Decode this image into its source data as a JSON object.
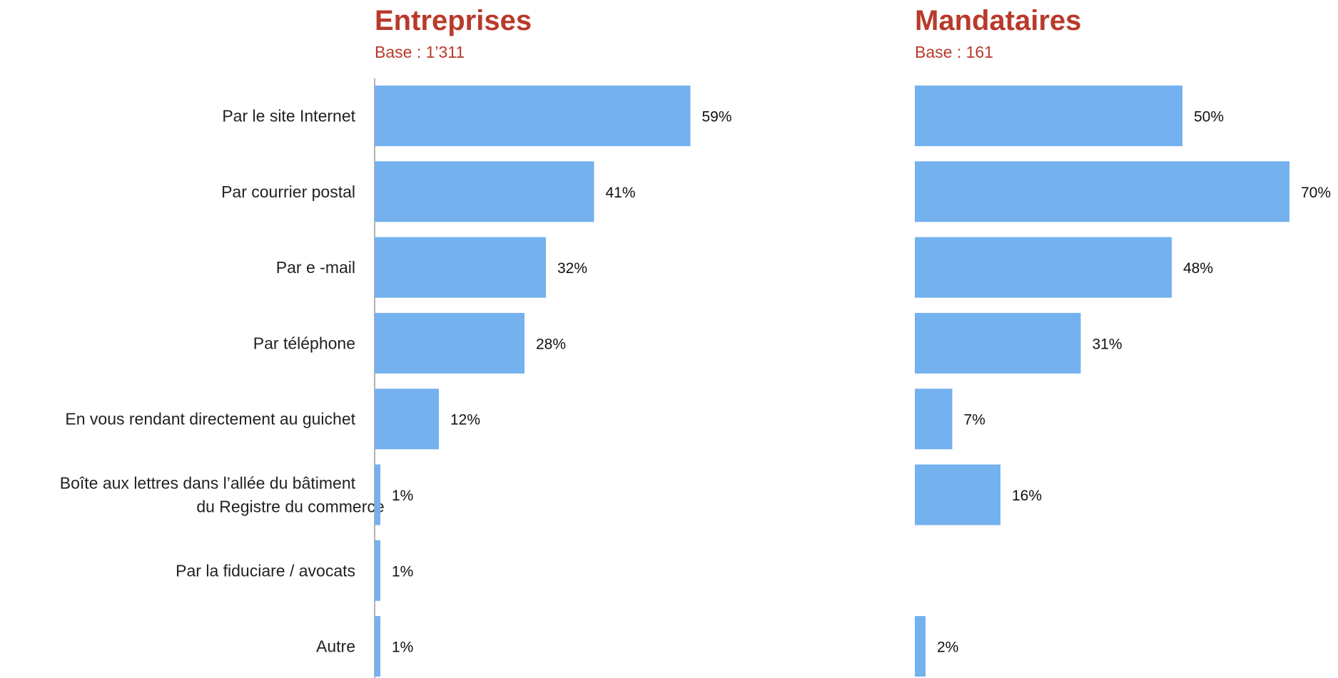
{
  "colors": {
    "bar": "#74b1ef",
    "title": "#b83a2b",
    "axis": "#9a9a9a"
  },
  "chart_data": {
    "type": "bar",
    "orientation": "horizontal",
    "categories": [
      [
        "Par le site Internet"
      ],
      [
        "Par courrier postal"
      ],
      [
        "Par e -mail"
      ],
      [
        "Par téléphone"
      ],
      [
        "En vous rendant directement au guichet"
      ],
      [
        "Boîte aux lettres dans l’allée du bâtiment",
        "du Registre du commerce"
      ],
      [
        "Par la fiduciare / avocats"
      ],
      [
        "Autre"
      ]
    ],
    "panels": [
      {
        "title": "Entreprises",
        "subtitle": "Base : 1’311",
        "values": [
          59,
          41,
          32,
          28,
          12,
          1,
          1,
          1
        ],
        "labels": [
          "59%",
          "41%",
          "32%",
          "28%",
          "12%",
          "1%",
          "1%",
          "1%"
        ]
      },
      {
        "title": "Mandataires",
        "subtitle": "Base : 161",
        "values": [
          50,
          70,
          48,
          31,
          7,
          16,
          null,
          2
        ],
        "labels": [
          "50%",
          "70%",
          "48%",
          "31%",
          "7%",
          "16%",
          "",
          "2%"
        ]
      }
    ],
    "legend": "none",
    "grid": false
  }
}
